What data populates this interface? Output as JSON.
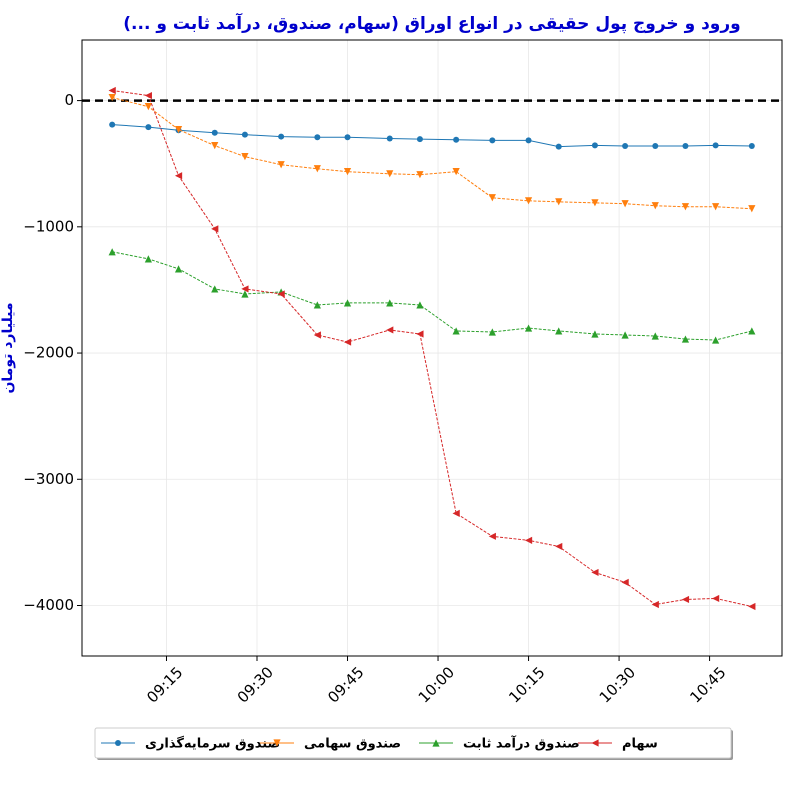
{
  "chart_data": {
    "type": "line",
    "title": "ورود و خروج پول حقیقی در انواع اوراق (سهام، صندوق، درآمد ثابت و ...)",
    "y_label": "میلیارد تومان",
    "x": [
      "09:06",
      "09:12",
      "09:17",
      "09:23",
      "09:28",
      "09:34",
      "09:40",
      "09:45",
      "09:52",
      "09:57",
      "10:03",
      "10:09",
      "10:15",
      "10:20",
      "10:26",
      "10:31",
      "10:36",
      "10:41",
      "10:46",
      "10:52"
    ],
    "xlim": [
      "09:01",
      "10:57"
    ],
    "xticks": [
      "09:15",
      "09:30",
      "09:45",
      "10:00",
      "10:15",
      "10:30",
      "10:45"
    ],
    "ylim": [
      -4400,
      480
    ],
    "yticks": [
      0,
      {
        "value": -1000,
        "label": "−1000"
      },
      {
        "value": -2000,
        "label": "−2000"
      },
      {
        "value": -3000,
        "label": "−3000"
      },
      {
        "value": -4000,
        "label": "−4000"
      }
    ],
    "hline": 0,
    "grid": true,
    "legend": "bottom",
    "series": [
      {
        "name": "صندوق سرمایه‌گذاری",
        "color": "#1f77b4",
        "marker": "o",
        "values": [
          -190,
          -210,
          -235,
          -255,
          -270,
          -285,
          -290,
          -290,
          -300,
          -305,
          -310,
          -315,
          -315,
          -365,
          -355,
          -360,
          -360,
          -360,
          -355,
          -360
        ]
      },
      {
        "name": "صندوق سهامی",
        "color": "#ff7f0e",
        "marker": "v",
        "values": [
          24,
          -48,
          -230,
          -357,
          -444,
          -508,
          -540,
          -563,
          -580,
          -587,
          -563,
          -770,
          -794,
          -802,
          -810,
          -817,
          -833,
          -841,
          -841,
          -857
        ]
      },
      {
        "name": "صندوق درآمد ثابت",
        "color": "#2ca02c",
        "marker": "^",
        "values": [
          -1198,
          -1254,
          -1333,
          -1492,
          -1532,
          -1516,
          -1619,
          -1603,
          -1603,
          -1619,
          -1825,
          -1833,
          -1802,
          -1825,
          -1849,
          -1857,
          -1865,
          -1889,
          -1897,
          -1825
        ]
      },
      {
        "name": "سهام",
        "color": "#d62728",
        "marker": "<",
        "values": [
          80,
          40,
          -595,
          -1016,
          -1492,
          -1532,
          -1857,
          -1913,
          -1817,
          -1849,
          -3270,
          -3452,
          -3484,
          -3532,
          -3738,
          -3817,
          -3992,
          -3952,
          -3944,
          -4008
        ]
      }
    ]
  }
}
